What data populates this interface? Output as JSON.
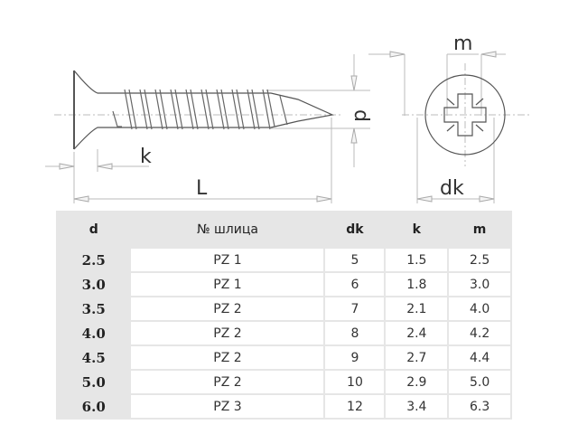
{
  "drawing": {
    "labels": {
      "m": "m",
      "d": "d",
      "k": "k",
      "L": "L",
      "dk": "dk"
    }
  },
  "table": {
    "headers": [
      "d",
      "№ шлица",
      "dk",
      "k",
      "m"
    ],
    "rows": [
      [
        "2.5",
        "PZ 1",
        "5",
        "1.5",
        "2.5"
      ],
      [
        "3.0",
        "PZ 1",
        "6",
        "1.8",
        "3.0"
      ],
      [
        "3.5",
        "PZ 2",
        "7",
        "2.1",
        "4.0"
      ],
      [
        "4.0",
        "PZ 2",
        "8",
        "2.4",
        "4.2"
      ],
      [
        "4.5",
        "PZ 2",
        "9",
        "2.7",
        "4.4"
      ],
      [
        "5.0",
        "PZ 2",
        "10",
        "2.9",
        "5.0"
      ],
      [
        "6.0",
        "PZ 3",
        "12",
        "3.4",
        "6.3"
      ]
    ]
  }
}
